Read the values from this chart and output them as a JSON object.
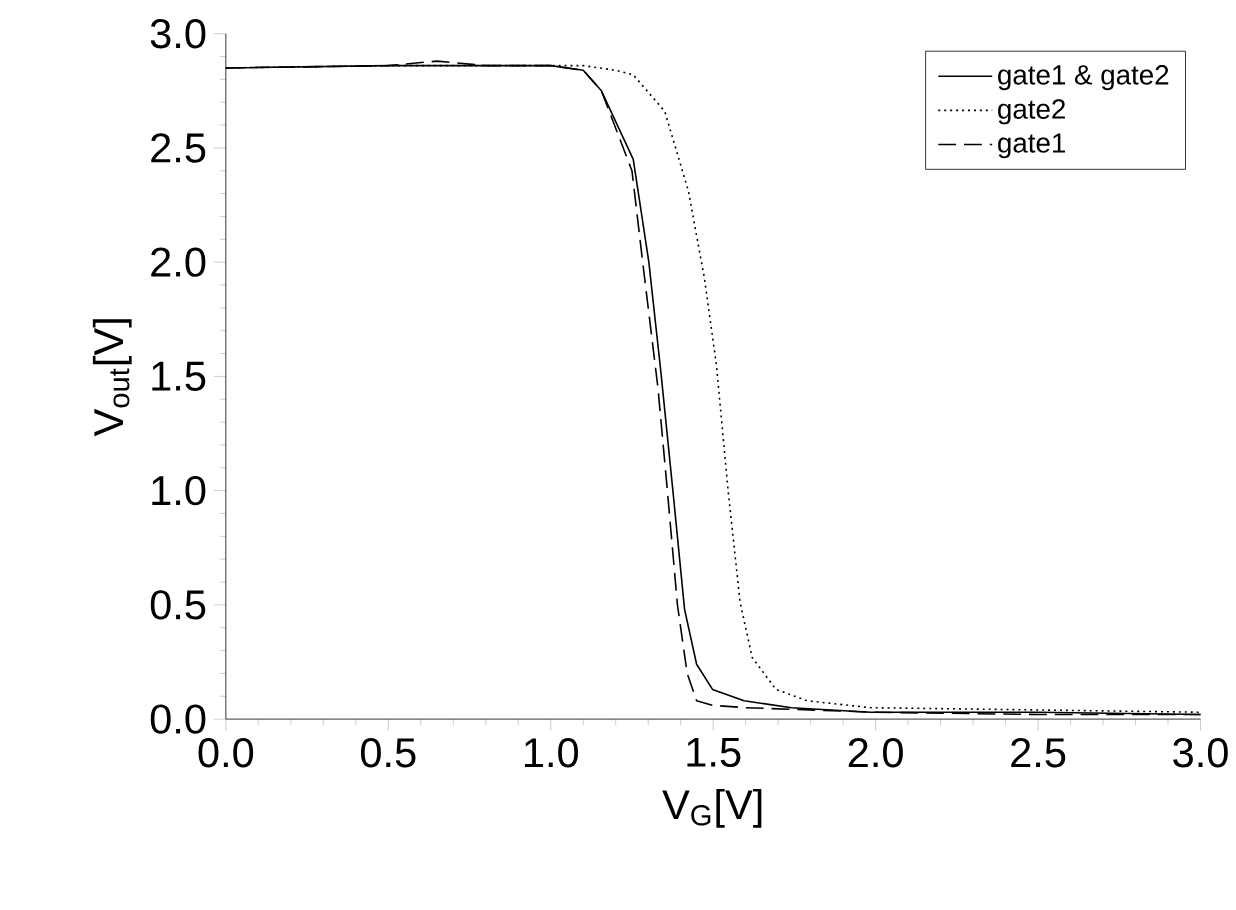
{
  "chart_data": {
    "type": "line",
    "xlabel": "V$_{G}$[V]",
    "ylabel": "V$_{out}$[V]",
    "xlim": [
      0,
      3
    ],
    "ylim": [
      0,
      3
    ],
    "xticks": [
      {
        "value": 0,
        "label": "0.0"
      },
      0.5,
      {
        "value": 1,
        "label": "1.0"
      },
      1.5,
      {
        "value": 2,
        "label": "2.0"
      },
      2.5,
      {
        "value": 3,
        "label": "3.0"
      }
    ],
    "yticks": [
      {
        "value": 0,
        "label": "0.0"
      },
      0.5,
      {
        "value": 1,
        "label": "1.0"
      },
      1.5,
      {
        "value": 2,
        "label": "2.0"
      },
      2.5,
      {
        "value": 3,
        "label": "3.0"
      }
    ],
    "legend": "top right",
    "marker": "none",
    "grid": false,
    "series": [
      {
        "name": "gate1 & gate2",
        "color": "#000000",
        "line_style": "solid",
        "x": [
          0,
          0.5,
          1.0,
          1.1,
          1.156,
          1.254,
          1.302,
          1.339,
          1.376,
          1.412,
          1.449,
          1.498,
          1.595,
          1.741,
          1.985,
          2.5,
          3.0
        ],
        "values": [
          2.85,
          2.86,
          2.86,
          2.84,
          2.75,
          2.45,
          2.0,
          1.52,
          1.0,
          0.48,
          0.24,
          0.13,
          0.08,
          0.05,
          0.03,
          0.03,
          0.02
        ]
      },
      {
        "name": "gate2",
        "color": "#000000",
        "line_style": "dotted",
        "x": [
          0,
          0.5,
          1.0,
          1.1,
          1.2,
          1.254,
          1.351,
          1.424,
          1.473,
          1.51,
          1.546,
          1.583,
          1.62,
          1.693,
          1.79,
          1.985,
          2.5,
          3.0
        ],
        "values": [
          2.85,
          2.86,
          2.86,
          2.86,
          2.84,
          2.82,
          2.66,
          2.31,
          1.93,
          1.55,
          1.0,
          0.51,
          0.27,
          0.13,
          0.08,
          0.05,
          0.04,
          0.03
        ]
      },
      {
        "name": "gate1",
        "color": "#000000",
        "line_style": "dashed",
        "x": [
          0,
          0.5,
          0.65,
          0.8,
          1.0,
          1.1,
          1.156,
          1.25,
          1.283,
          1.33,
          1.359,
          1.39,
          1.42,
          1.449,
          1.5,
          1.6,
          2.0,
          2.5,
          3.0
        ],
        "values": [
          2.85,
          2.86,
          2.88,
          2.86,
          2.86,
          2.84,
          2.75,
          2.4,
          2.0,
          1.45,
          1.0,
          0.5,
          0.2,
          0.08,
          0.06,
          0.05,
          0.03,
          0.02,
          0.02
        ]
      }
    ]
  }
}
